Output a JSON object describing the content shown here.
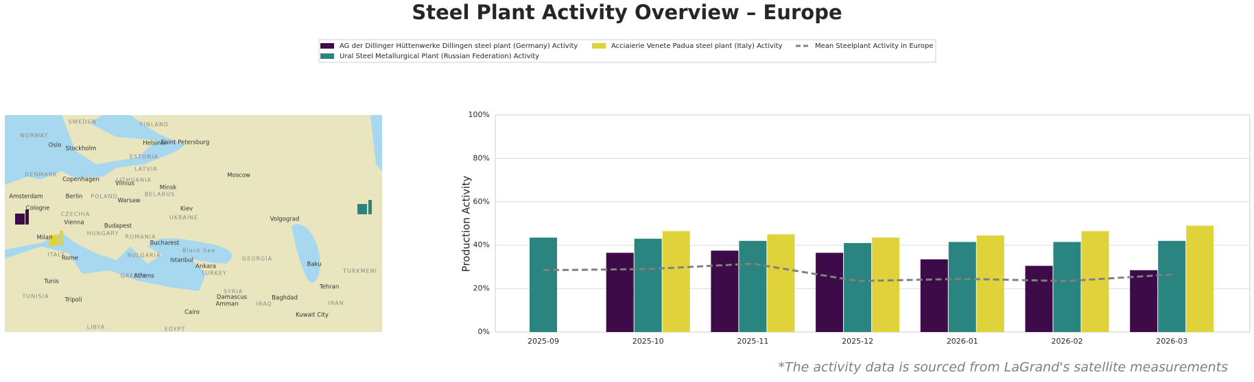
{
  "chart_data": {
    "type": "bar",
    "title": "Steel Plant Activity Overview – Europe",
    "y_label": "Production Activity",
    "footnote": "*The activity data is sourced from LaGrand's satellite measurements",
    "categories": [
      "2025-09",
      "2025-10",
      "2025-11",
      "2025-12",
      "2026-01",
      "2026-02",
      "2026-03"
    ],
    "series": [
      {
        "name": "AG der Dillinger Hüttenwerke Dillingen steel plant (Germany) Activity",
        "color": "#3d0b47",
        "values": [
          null,
          36.5,
          37.5,
          36.5,
          33.5,
          30.5,
          28.5
        ]
      },
      {
        "name": "Ural Steel Metallurgical Plant (Russian Federation) Activity",
        "color": "#2a8580",
        "values": [
          43.5,
          43,
          42,
          41,
          41.5,
          41.5,
          42
        ]
      },
      {
        "name": "Acciaierie Venete Padua steel plant (Italy) Activity",
        "color": "#e0d23b",
        "values": [
          null,
          46.5,
          45,
          43.5,
          44.5,
          46.5,
          49
        ]
      },
      {
        "name": "Mean Steelplant Activity in Europe",
        "type": "line",
        "style": "dashed",
        "color": "#808080",
        "values": [
          28.5,
          29,
          31.5,
          23.5,
          24.5,
          23.5,
          26.5
        ]
      }
    ],
    "ylim": [
      0,
      100
    ],
    "yticks": [
      {
        "value": 0,
        "label": "0%"
      },
      {
        "value": 20,
        "label": "20%"
      },
      {
        "value": 40,
        "label": "40%"
      },
      {
        "value": 60,
        "label": "60%"
      },
      {
        "value": 80,
        "label": "80%"
      },
      {
        "value": 100,
        "label": "100%"
      }
    ],
    "grid": true,
    "legend": "upper center"
  },
  "map": {
    "labels": [
      "SWEDEN",
      "FINLAND",
      "NORWAY",
      "Oslo",
      "Stockholm",
      "Helsinki",
      "Saint Petersburg",
      "ESTONIA",
      "LATVIA",
      "DENMARK",
      "Copenhagen",
      "LITHUANIA",
      "Vilnius",
      "Minsk",
      "Moscow",
      "BELARUS",
      "Amsterdam",
      "Berlin",
      "POLAND",
      "Warsaw",
      "Cologne",
      "CZECHIA",
      "UKRAINE",
      "Kiev",
      "Volgograd",
      "Vienna",
      "Budapest",
      "HUNGARY",
      "Milan",
      "ROMANIA",
      "Bucharest",
      "ITALY",
      "Rome",
      "BULGARIA",
      "Istanbul",
      "Ankara",
      "GEORGIA",
      "Baku",
      "Black Sea",
      "GREECE",
      "Athens",
      "TURKEY",
      "TURKMENI",
      "Tunis",
      "TUNISIA",
      "Tripoli",
      "SYRIA",
      "Damascus",
      "Amman",
      "IRAQ",
      "Baghdad",
      "IRAN",
      "Tehran",
      "Kuwait City",
      "Cairo",
      "EGYPT",
      "LIBYA"
    ]
  }
}
